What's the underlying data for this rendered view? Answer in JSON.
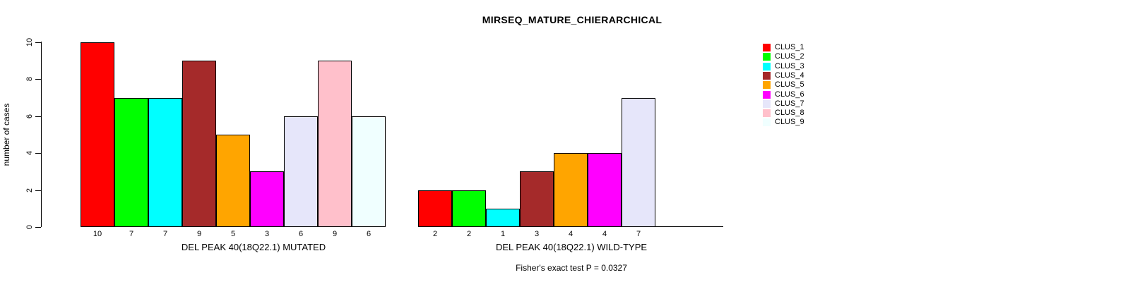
{
  "page": {
    "background_color": "#FFFFFF",
    "text_color": "#000000"
  },
  "chart_data": {
    "type": "bar",
    "title": "MIRSEQ_MATURE_CHIERARCHICAL",
    "ylabel": "number of cases",
    "ylim": [
      0,
      10
    ],
    "yticks": [
      0,
      2,
      4,
      6,
      8,
      10
    ],
    "grid": false,
    "legend_position": "right",
    "clusters": [
      {
        "label": "CLUS_1",
        "color": "#FF0000"
      },
      {
        "label": "CLUS_2",
        "color": "#00FF00"
      },
      {
        "label": "CLUS_3",
        "color": "#00FFFF"
      },
      {
        "label": "CLUS_4",
        "color": "#A52A2A"
      },
      {
        "label": "CLUS_5",
        "color": "#FFA500"
      },
      {
        "label": "CLUS_6",
        "color": "#FF00FF"
      },
      {
        "label": "CLUS_7",
        "color": "#E6E6FA"
      },
      {
        "label": "CLUS_8",
        "color": "#FFC0CB"
      },
      {
        "label": "CLUS_9",
        "color": "#F0FFFF"
      }
    ],
    "groups": [
      {
        "xlabel": "DEL PEAK 40(18Q22.1) MUTATED",
        "values": [
          10,
          7,
          7,
          9,
          5,
          3,
          6,
          9,
          6
        ],
        "bar_labels": [
          "10",
          "7",
          "7",
          "9",
          "5",
          "3",
          "6",
          "9",
          "6"
        ]
      },
      {
        "xlabel": "DEL PEAK 40(18Q22.1) WILD-TYPE",
        "values": [
          2,
          2,
          1,
          3,
          4,
          4,
          7,
          0,
          0
        ],
        "bar_labels": [
          "2",
          "2",
          "1",
          "3",
          "4",
          "4",
          "7",
          "",
          ""
        ]
      }
    ],
    "annotation": "Fisher's exact test P = 0.0327"
  }
}
